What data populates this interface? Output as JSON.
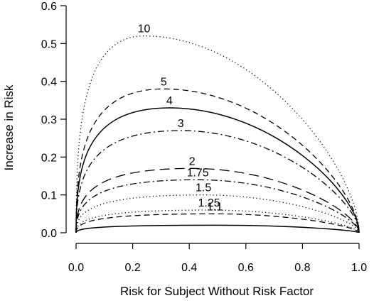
{
  "chart_data": {
    "type": "line",
    "title": "",
    "xlabel": "Risk for Subject Without Risk Factor",
    "ylabel": "Increase in Risk",
    "xlim": [
      0,
      1
    ],
    "ylim": [
      0,
      0.6
    ],
    "xticks": [
      "0.0",
      "0.2",
      "0.4",
      "0.6",
      "0.8",
      "1.0"
    ],
    "yticks": [
      "0.0",
      "0.1",
      "0.2",
      "0.3",
      "0.4",
      "0.5",
      "0.6"
    ],
    "grid": false,
    "legend": "none",
    "series": [
      {
        "label": "10",
        "odds_ratio": 10,
        "line_style": "dotted",
        "peak": [
          0.24,
          0.52
        ]
      },
      {
        "label": "5",
        "odds_ratio": 5,
        "line_style": "dashed",
        "peak": [
          0.31,
          0.38
        ]
      },
      {
        "label": "4",
        "odds_ratio": 4,
        "line_style": "solid",
        "peak": [
          0.33,
          0.33
        ]
      },
      {
        "label": "3",
        "odds_ratio": 3,
        "line_style": "dashdot",
        "peak": [
          0.37,
          0.27
        ]
      },
      {
        "label": "2",
        "odds_ratio": 2,
        "line_style": "longdash",
        "peak": [
          0.41,
          0.17
        ]
      },
      {
        "label": "1.75",
        "odds_ratio": 1.75,
        "line_style": "dashdot",
        "peak": [
          0.43,
          0.14
        ]
      },
      {
        "label": "1.5",
        "odds_ratio": 1.5,
        "line_style": "dotted",
        "peak": [
          0.45,
          0.1
        ]
      },
      {
        "label": "1.25",
        "odds_ratio": 1.25,
        "line_style": "dotted",
        "peak": [
          0.47,
          0.06
        ]
      },
      {
        "label": "1.1",
        "odds_ratio": 1.1,
        "line_style": "dashed",
        "peak": [
          0.49,
          0.05
        ]
      },
      {
        "label": "",
        "odds_ratio": 1.1,
        "line_style": "solid",
        "peak": [
          0.49,
          0.02
        ]
      }
    ]
  }
}
